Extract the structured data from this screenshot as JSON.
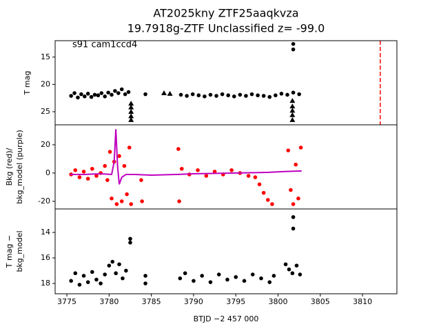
{
  "chart_data": [
    {
      "type": "scatter",
      "title": [
        "AT2025kny  ZTF25aaqkvza",
        "19.7918g-ZTF Unclassified z= -99.0"
      ],
      "annotation": "s91 cam1ccd4",
      "ylabel": [
        "T mag"
      ],
      "xlim": [
        3773.61,
        3814.07
      ],
      "ylim": [
        12.0,
        27.4
      ],
      "invert_y": true,
      "yticks": [
        15,
        20,
        25
      ],
      "vline": {
        "x": 3812.1,
        "color": "#ff0000",
        "dashed": true
      },
      "series": [
        {
          "mode": "points",
          "marker": "circle",
          "color": "#000000",
          "x": [
            3775.5,
            3775.9,
            3776.3,
            3776.7,
            3777.1,
            3777.5,
            3777.9,
            3778.3,
            3778.7,
            3779.1,
            3779.5,
            3779.9,
            3780.3,
            3780.7,
            3781.1,
            3781.5,
            3781.9,
            3782.3,
            3784.3,
            3788.5,
            3789.2,
            3789.9,
            3790.6,
            3791.3,
            3792,
            3792.7,
            3793.4,
            3794.1,
            3794.8,
            3795.5,
            3796.2,
            3796.9,
            3797.6,
            3798.3,
            3799,
            3799.7,
            3800.4,
            3801.1,
            3801.8,
            3801.8,
            3801.8,
            3802.5
          ],
          "values": [
            22.1,
            21.6,
            22.4,
            21.8,
            22.2,
            21.7,
            22.3,
            21.9,
            22.0,
            21.6,
            22.2,
            21.5,
            21.9,
            21.2,
            21.6,
            20.9,
            21.8,
            21.4,
            21.8,
            21.9,
            22.1,
            21.8,
            22.0,
            22.2,
            21.9,
            22.1,
            21.8,
            22.0,
            22.2,
            21.9,
            22.1,
            21.8,
            22.0,
            22.1,
            22.3,
            22.0,
            21.7,
            21.9,
            12.6,
            13.6,
            21.5,
            21.8
          ]
        },
        {
          "mode": "points",
          "marker": "triangle",
          "color": "#000000",
          "x": [
            3782.6,
            3782.6,
            3782.6,
            3782.6,
            3782.6,
            3786.5,
            3787.2,
            3801.7,
            3801.7,
            3801.7,
            3801.7,
            3801.7
          ],
          "values": [
            23.5,
            24.2,
            25,
            25.8,
            26.5,
            21.6,
            21.7,
            23,
            24,
            24.8,
            25.6,
            26.5
          ]
        }
      ]
    },
    {
      "type": "scatter",
      "ylabel": [
        "Bkg (red)/",
        "bkg_model (purple)"
      ],
      "xlim": [
        3773.61,
        3814.07
      ],
      "ylim": [
        -25.4,
        34.1
      ],
      "yticks": [
        20,
        0,
        -20
      ],
      "series": [
        {
          "mode": "points",
          "marker": "circle",
          "color": "#ff0000",
          "x": [
            3775.5,
            3776,
            3776.5,
            3777,
            3777.5,
            3778,
            3778.5,
            3779,
            3779.5,
            3779.8,
            3780.1,
            3780.3,
            3780.6,
            3780.9,
            3781.2,
            3781.5,
            3781.8,
            3782.1,
            3782.4,
            3782.6,
            3783.8,
            3783.9,
            3788.2,
            3788.3,
            3788.6,
            3789.5,
            3790.5,
            3791.5,
            3792.5,
            3793.5,
            3794.5,
            3795.5,
            3796.5,
            3797.3,
            3797.8,
            3798.3,
            3798.8,
            3799.3,
            3801.2,
            3801.5,
            3801.8,
            3802.1,
            3802.4,
            3802.7
          ],
          "values": [
            -1,
            2,
            -3,
            1,
            -4,
            3,
            -2,
            0,
            5,
            -5,
            15,
            -18,
            8,
            -22,
            12,
            -20,
            5,
            -15,
            18,
            -22,
            -5,
            -20,
            17,
            -20,
            3,
            -1,
            2,
            -2,
            1,
            -1,
            2,
            0,
            -2,
            -3,
            -8,
            -14,
            -19,
            -22,
            16,
            -12,
            -22,
            6,
            -18,
            18
          ]
        },
        {
          "mode": "line",
          "color": "#bf00bf",
          "x": [
            3775.4,
            3777,
            3779,
            3780.3,
            3780.6,
            3780.8,
            3781.0,
            3781.2,
            3781.5,
            3782,
            3783,
            3785,
            3788,
            3790,
            3795,
            3799,
            3800.5,
            3802.8
          ],
          "values": [
            -1,
            -1,
            -0.5,
            -1,
            8,
            31,
            5,
            -8,
            -3,
            -1,
            -1,
            -1.5,
            -1,
            -0.5,
            0,
            0.5,
            1,
            1.5
          ]
        }
      ]
    },
    {
      "type": "scatter",
      "ylabel": [
        "T mag −",
        "bkg_model"
      ],
      "xlabel": "BTJD −2 457 000",
      "xlim": [
        3773.61,
        3814.07
      ],
      "xticks": [
        3775,
        3780,
        3785,
        3790,
        3795,
        3800,
        3805,
        3810
      ],
      "ylim": [
        12.16,
        18.81
      ],
      "invert_y": true,
      "yticks": [
        14,
        16,
        18
      ],
      "series": [
        {
          "mode": "points",
          "marker": "circle",
          "color": "#000000",
          "x": [
            3775.5,
            3776,
            3776.5,
            3777,
            3777.5,
            3778,
            3778.5,
            3779,
            3779.5,
            3780,
            3780.4,
            3780.8,
            3781.2,
            3781.6,
            3782,
            3782.5,
            3782.5,
            3784.3,
            3784.3,
            3788.4,
            3789,
            3790,
            3791,
            3792,
            3793,
            3794,
            3795,
            3796,
            3797,
            3798,
            3799,
            3799.5,
            3800.9,
            3801.3,
            3801.7,
            3801.8,
            3801.8,
            3802.2,
            3802.6
          ],
          "values": [
            17.8,
            17.2,
            18.1,
            17.4,
            17.9,
            17.1,
            17.7,
            18.0,
            17.3,
            16.6,
            16.3,
            17.2,
            16.5,
            17.6,
            17.0,
            14.5,
            14.8,
            17.4,
            18.0,
            17.6,
            17.2,
            17.8,
            17.4,
            17.9,
            17.3,
            17.7,
            17.5,
            17.8,
            17.3,
            17.6,
            17.9,
            17.4,
            16.5,
            16.9,
            17.2,
            12.8,
            13.7,
            16.6,
            17.3
          ]
        }
      ]
    }
  ]
}
